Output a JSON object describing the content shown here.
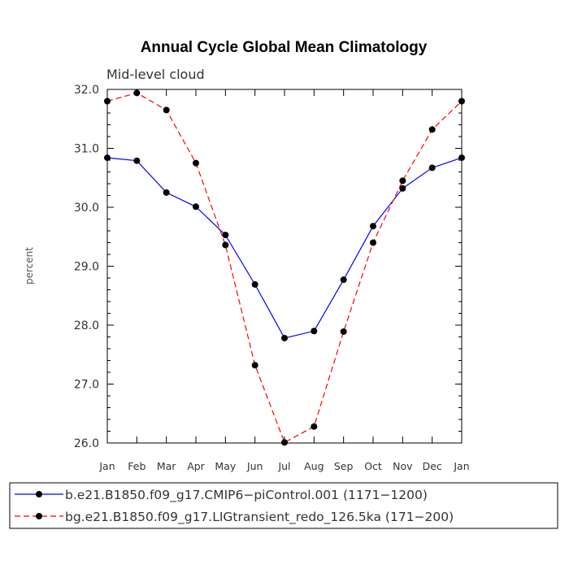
{
  "chart_data": {
    "type": "line",
    "title": "Annual Cycle Global Mean Climatology",
    "subtitle": "Mid-level cloud",
    "xlabel": "",
    "ylabel": "percent",
    "ylim": [
      26.0,
      32.0
    ],
    "yticks": [
      "26.0",
      "27.0",
      "28.0",
      "29.0",
      "30.0",
      "31.0",
      "32.0"
    ],
    "categories": [
      "Jan",
      "Feb",
      "Mar",
      "Apr",
      "May",
      "Jun",
      "Jul",
      "Aug",
      "Sep",
      "Oct",
      "Nov",
      "Dec",
      "Jan"
    ],
    "legend_position": "bottom",
    "series": [
      {
        "name": "b.e21.B1850.f09_g17.CMIP6−piControl.001 (1171−1200)",
        "color": "#0000ff",
        "style": "solid",
        "values": [
          30.84,
          30.79,
          30.25,
          30.01,
          29.53,
          28.69,
          27.78,
          27.9,
          28.77,
          29.68,
          30.32,
          30.67,
          30.84
        ]
      },
      {
        "name": "bg.e21.B1850.f09_g17.LIGtransient_redo_126.5ka (171−200)",
        "color": "#ff0000",
        "style": "dashed",
        "values": [
          31.8,
          31.94,
          31.65,
          30.75,
          29.36,
          27.32,
          26.01,
          26.28,
          27.89,
          29.4,
          30.45,
          31.32,
          31.8
        ]
      }
    ]
  }
}
